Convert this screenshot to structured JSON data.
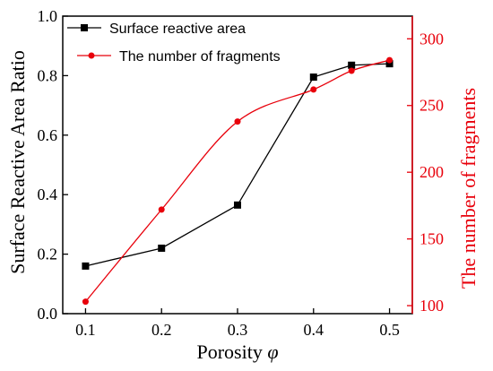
{
  "chart_data": {
    "type": "line",
    "x_axis": {
      "label_main": "Porosity ",
      "label_symbol": "φ",
      "range": [
        0.07,
        0.53
      ],
      "ticks": [
        "0.1",
        "0.2",
        "0.3",
        "0.4",
        "0.5"
      ],
      "tick_values": [
        0.1,
        0.2,
        0.3,
        0.4,
        0.5
      ]
    },
    "y_left": {
      "label": "Surface Reactive Area Ratio",
      "range": [
        0,
        1
      ],
      "ticks": [
        "0.0",
        "0.2",
        "0.4",
        "0.6",
        "0.8",
        "1.0"
      ],
      "tick_values": [
        0,
        0.2,
        0.4,
        0.6,
        0.8,
        1.0
      ],
      "color": "#000000"
    },
    "y_right": {
      "label": "The number of fragments",
      "range": [
        94,
        317
      ],
      "ticks": [
        "100",
        "150",
        "200",
        "250",
        "300"
      ],
      "tick_values": [
        100,
        150,
        200,
        250,
        300
      ],
      "color": "#e8000b"
    },
    "series": [
      {
        "name": "Surface reactive area",
        "axis": "left",
        "color": "#000000",
        "marker": "square",
        "curve": "straight",
        "x": [
          0.1,
          0.2,
          0.3,
          0.4,
          0.45,
          0.5
        ],
        "y": [
          0.16,
          0.22,
          0.365,
          0.795,
          0.835,
          0.84
        ]
      },
      {
        "name": "The number of fragments",
        "axis": "right",
        "color": "#e8000b",
        "marker": "circle",
        "curve": "smooth",
        "x": [
          0.1,
          0.2,
          0.3,
          0.4,
          0.45,
          0.5
        ],
        "y": [
          103,
          172,
          238,
          262,
          276,
          284
        ]
      }
    ],
    "legend_position": "top-left"
  }
}
